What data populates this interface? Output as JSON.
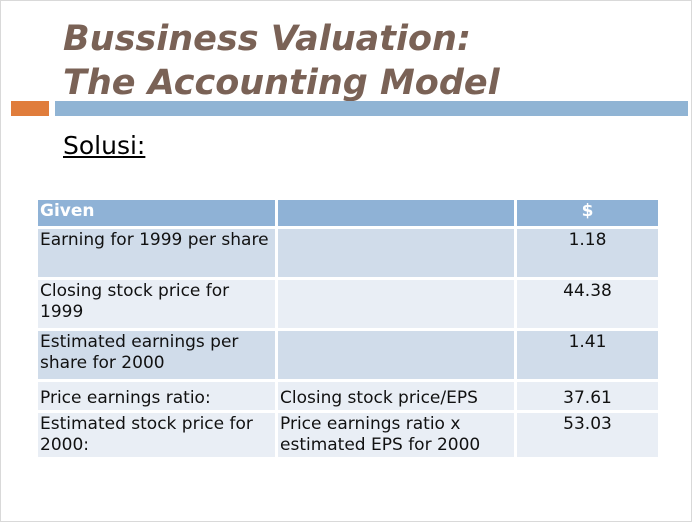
{
  "slide": {
    "title_line1": "Bussiness Valuation:",
    "title_line2": "The Accounting Model",
    "subtitle": "Solusi:"
  },
  "table": {
    "header": {
      "col1": "Given",
      "col2": "",
      "col3": "$"
    },
    "rows": [
      {
        "label": "Earning for 1999 per share",
        "formula": "",
        "value": "1.18"
      },
      {
        "label": "Closing stock price for 1999",
        "formula": "",
        "value": "44.38"
      },
      {
        "label": "Estimated earnings per share for 2000",
        "formula": "",
        "value": "1.41"
      },
      {
        "label": "Price earnings ratio:",
        "formula": "Closing stock price/EPS",
        "value": "37.61"
      },
      {
        "label": "Estimated stock price for 2000:",
        "formula": "Price earnings ratio x estimated EPS for 2000",
        "value": "53.03"
      }
    ]
  },
  "colors": {
    "title": "#7a6256",
    "accent": "#e07d3c",
    "rule": "#90b4d4",
    "header_fill": "#8fb2d6",
    "row_dark": "#d0dcea",
    "row_light": "#e9eef5"
  }
}
